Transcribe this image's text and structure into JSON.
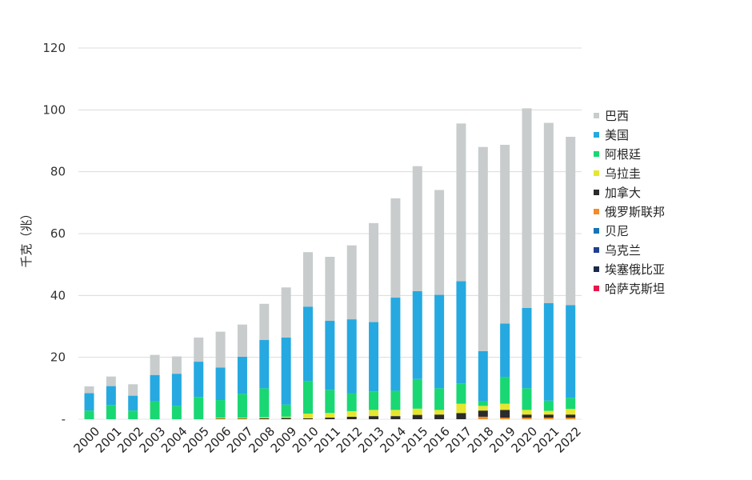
{
  "chart_data": {
    "type": "bar",
    "stacked": true,
    "ylabel": "千克（兆）",
    "ylim": [
      0,
      120
    ],
    "yticks": [
      0,
      20,
      40,
      60,
      80,
      100,
      120
    ],
    "ytick_labels": [
      "-",
      "20",
      "40",
      "60",
      "80",
      "100",
      "120"
    ],
    "grid": true,
    "legend_position": "right",
    "categories": [
      "2000",
      "2001",
      "2002",
      "2003",
      "2004",
      "2005",
      "2006",
      "2007",
      "2008",
      "2009",
      "2010",
      "2011",
      "2012",
      "2013",
      "2014",
      "2015",
      "2016",
      "2017",
      "2018",
      "2019",
      "2020",
      "2021",
      "2022"
    ],
    "series": [
      {
        "name": "哈萨克斯坦",
        "color": "#e8174a",
        "values": [
          0,
          0,
          0,
          0,
          0,
          0,
          0,
          0,
          0,
          0,
          0,
          0,
          0,
          0,
          0,
          0,
          0,
          0,
          0,
          0,
          0,
          0,
          0
        ]
      },
      {
        "name": "埃塞俄比亚",
        "color": "#1b2a4a",
        "values": [
          0,
          0,
          0,
          0,
          0,
          0,
          0,
          0,
          0,
          0,
          0,
          0,
          0,
          0,
          0,
          0,
          0,
          0,
          0,
          0,
          0,
          0,
          0
        ]
      },
      {
        "name": "乌克兰",
        "color": "#1f3f8f",
        "values": [
          0,
          0,
          0,
          0,
          0,
          0,
          0,
          0,
          0,
          0,
          0,
          0,
          0,
          0,
          0,
          0,
          0,
          0,
          0,
          0,
          0,
          0,
          0
        ]
      },
      {
        "name": "贝尼",
        "color": "#1574b8",
        "values": [
          0,
          0,
          0,
          0,
          0,
          0,
          0,
          0,
          0,
          0,
          0,
          0,
          0,
          0,
          0,
          0,
          0,
          0,
          0,
          0,
          0,
          0,
          0
        ]
      },
      {
        "name": "俄罗斯联邦",
        "color": "#f28c28",
        "values": [
          0,
          0,
          0,
          0,
          0,
          0,
          0,
          0,
          0,
          0,
          0,
          0,
          0,
          0,
          0,
          0,
          0,
          0,
          0.8,
          0.5,
          0.5,
          0.5,
          0.5
        ]
      },
      {
        "name": "加拿大",
        "color": "#2b2b2b",
        "values": [
          0,
          0,
          0,
          0,
          0,
          0,
          0.2,
          0.2,
          0.3,
          0.4,
          0.3,
          0.5,
          0.8,
          1.0,
          1.0,
          1.4,
          1.5,
          2.0,
          2.0,
          2.5,
          1.0,
          1.0,
          1.0
        ]
      },
      {
        "name": "乌拉圭",
        "color": "#e6e62e",
        "values": [
          0,
          0,
          0,
          0,
          0,
          0,
          0.3,
          0.3,
          0.3,
          0.4,
          1.5,
          1.5,
          1.8,
          2.0,
          2.0,
          2.0,
          1.5,
          3.0,
          1.5,
          2.0,
          1.5,
          1.2,
          1.8
        ]
      },
      {
        "name": "阿根廷",
        "color": "#19d873",
        "values": [
          2.8,
          4.6,
          2.8,
          5.8,
          4.3,
          7.2,
          5.7,
          7.7,
          9.4,
          3.9,
          10.6,
          7.5,
          5.8,
          6.0,
          6.2,
          9.6,
          7.0,
          6.6,
          1.5,
          8.7,
          7.0,
          3.3,
          3.6
        ]
      },
      {
        "name": "美国",
        "color": "#25a9e0",
        "values": [
          5.6,
          6.1,
          4.8,
          8.5,
          10.4,
          11.4,
          10.5,
          12.0,
          15.6,
          21.7,
          24.0,
          22.3,
          23.9,
          22.4,
          30.1,
          28.4,
          30.2,
          33.0,
          16.2,
          17.2,
          26.0,
          31.5,
          30.0
        ]
      },
      {
        "name": "巴西",
        "color": "#c8cccd",
        "values": [
          2.2,
          3.1,
          3.7,
          6.5,
          5.6,
          7.8,
          11.6,
          10.4,
          11.7,
          16.2,
          17.6,
          20.7,
          23.9,
          32.0,
          32.1,
          40.4,
          33.9,
          51.0,
          66.0,
          57.8,
          64.5,
          58.3,
          54.4
        ]
      }
    ],
    "legend_order": [
      "巴西",
      "美国",
      "阿根廷",
      "乌拉圭",
      "加拿大",
      "俄罗斯联邦",
      "贝尼",
      "乌克兰",
      "埃塞俄比亚",
      "哈萨克斯坦"
    ]
  }
}
